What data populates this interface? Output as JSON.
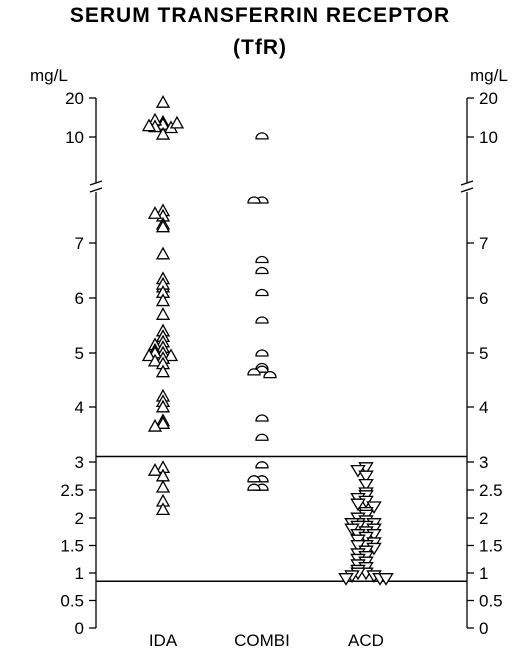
{
  "chart_data": {
    "type": "scatter",
    "title_line1": "SERUM TRANSFERRIN RECEPTOR",
    "title_line2": "(TfR)",
    "ylabel_left": "mg/L",
    "ylabel_right": "mg/L",
    "axis_break": "between 7.8 and 10 mg/L",
    "yticks_lower": [
      {
        "value": 0,
        "label": "0"
      },
      {
        "value": 0.5,
        "label": "0.5"
      },
      {
        "value": 1,
        "label": "1"
      },
      {
        "value": 1.5,
        "label": "1.5"
      },
      {
        "value": 2,
        "label": "2"
      },
      {
        "value": 2.5,
        "label": "2.5"
      },
      {
        "value": 3,
        "label": "3"
      },
      {
        "value": 4,
        "label": "4"
      },
      {
        "value": 5,
        "label": "5"
      },
      {
        "value": 6,
        "label": "6"
      },
      {
        "value": 7,
        "label": "7"
      }
    ],
    "yticks_upper": [
      {
        "value": 10,
        "label": "10"
      },
      {
        "value": 20,
        "label": "20"
      }
    ],
    "reference_lines": [
      3.1,
      0.85
    ],
    "categories": [
      "IDA",
      "COMBI",
      "ACD"
    ],
    "series": [
      {
        "category": "IDA",
        "marker": "triangle-up",
        "values": [
          18.5,
          13,
          12.5,
          13.5,
          12,
          11.8,
          12.2,
          12.8,
          10.5,
          7.6,
          7.5,
          7.55,
          7.35,
          7.3,
          6.8,
          6.35,
          6.2,
          6.25,
          6.1,
          5.95,
          5.7,
          5.4,
          5.3,
          5.2,
          5.15,
          5.1,
          5.05,
          5.0,
          5.0,
          4.95,
          4.95,
          4.9,
          4.85,
          4.8,
          4.65,
          4.2,
          4.1,
          4.0,
          3.75,
          3.7,
          3.65,
          2.9,
          2.85,
          2.75,
          2.55,
          2.3,
          2.15
        ]
      },
      {
        "category": "COMBI",
        "marker": "semicircle",
        "values": [
          10.2,
          7.8,
          7.8,
          6.7,
          6.5,
          6.1,
          5.6,
          5.0,
          4.75,
          4.7,
          4.65,
          4.6,
          3.8,
          3.45,
          2.95,
          2.7,
          2.7,
          2.55,
          2.55
        ]
      },
      {
        "category": "ACD",
        "marker": "triangle-down",
        "values": [
          2.9,
          2.85,
          2.75,
          2.6,
          2.45,
          2.4,
          2.35,
          2.3,
          2.25,
          2.2,
          2.1,
          2.05,
          2.0,
          1.95,
          1.9,
          1.9,
          1.9,
          1.85,
          1.85,
          1.8,
          1.8,
          1.75,
          1.7,
          1.7,
          1.65,
          1.6,
          1.55,
          1.5,
          1.5,
          1.45,
          1.4,
          1.35,
          1.3,
          1.25,
          1.2,
          1.15,
          1.1,
          1.05,
          1.0,
          1.0,
          0.95,
          0.95,
          0.9,
          0.9,
          0.9
        ]
      }
    ]
  }
}
